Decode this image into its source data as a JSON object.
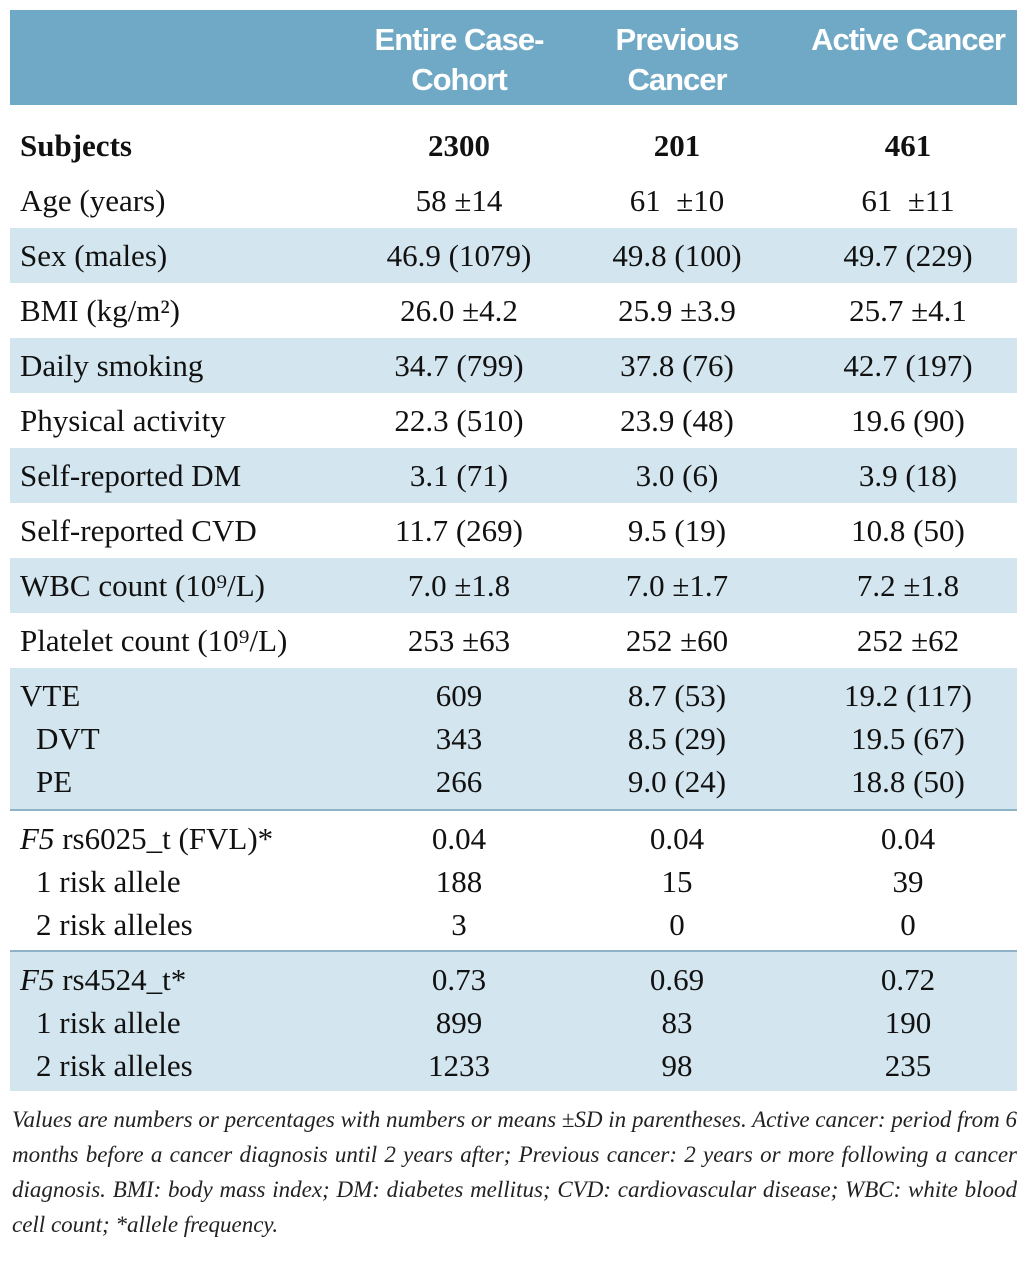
{
  "table": {
    "header": [
      "Entire Case-Cohort",
      "Previous Cancer",
      "Active Cancer"
    ],
    "groups": [
      [
        {
          "label": "Subjects",
          "values": [
            "2300",
            "201",
            "461"
          ]
        }
      ],
      [
        {
          "label": "Age (years)",
          "values": [
            "58 ±14",
            "61  ±10",
            "61  ±11"
          ]
        }
      ],
      [
        {
          "label": "Sex (males)",
          "values": [
            "46.9 (1079)",
            "49.8 (100)",
            "49.7 (229)"
          ]
        }
      ],
      [
        {
          "label": "BMI (kg/m²)",
          "values": [
            "26.0 ±4.2",
            "25.9 ±3.9",
            "25.7 ±4.1"
          ]
        }
      ],
      [
        {
          "label": "Daily smoking",
          "values": [
            "34.7 (799)",
            "37.8 (76)",
            "42.7 (197)"
          ]
        }
      ],
      [
        {
          "label": "Physical activity",
          "values": [
            "22.3 (510)",
            "23.9 (48)",
            "19.6 (90)"
          ]
        }
      ],
      [
        {
          "label": "Self-reported DM",
          "values": [
            "3.1 (71)",
            "3.0 (6)",
            "3.9 (18)"
          ]
        }
      ],
      [
        {
          "label": "Self-reported CVD",
          "values": [
            "11.7 (269)",
            "9.5 (19)",
            "10.8 (50)"
          ]
        }
      ],
      [
        {
          "label": "WBC count (10⁹/L)",
          "values": [
            "7.0 ±1.8",
            "7.0 ±1.7",
            "7.2 ±1.8"
          ]
        }
      ],
      [
        {
          "label": "Platelet count (10⁹/L)",
          "values": [
            "253 ±63",
            "252 ±60",
            "252 ±62"
          ]
        }
      ],
      [
        {
          "label": "VTE",
          "values": [
            "609",
            "8.7 (53)",
            "19.2 (117)"
          ]
        },
        {
          "label": "DVT",
          "values": [
            "343",
            "8.5 (29)",
            "19.5 (67)"
          ]
        },
        {
          "label": "PE",
          "values": [
            "266",
            "9.0 (24)",
            "18.8 (50)"
          ]
        }
      ],
      [
        {
          "italic": "F5",
          "label": "rs6025_t (FVL)*",
          "values": [
            "0.04",
            "0.04",
            "0.04"
          ]
        },
        {
          "label": "1 risk allele",
          "values": [
            "188",
            "15",
            "39"
          ]
        },
        {
          "label": "2 risk alleles",
          "values": [
            "3",
            "0",
            "0"
          ]
        }
      ],
      [
        {
          "italic": "F5",
          "label": "rs4524_t*",
          "values": [
            "0.73",
            "0.69",
            "0.72"
          ]
        },
        {
          "label": "1 risk allele",
          "values": [
            "899",
            "83",
            "190"
          ]
        },
        {
          "label": "2 risk alleles",
          "values": [
            "1233",
            "98",
            "235"
          ]
        }
      ]
    ],
    "note": "Values are numbers or percentages with numbers or means ±SD in parentheses. Active cancer: period from 6 months before a cancer diagnosis until 2 years after; Previous cancer: 2 years or more following a cancer diagnosis. BMI: body mass index; DM: diabetes mellitus; CVD: cardiovascular disease; WBC: white blood cell count; *allele frequency."
  }
}
